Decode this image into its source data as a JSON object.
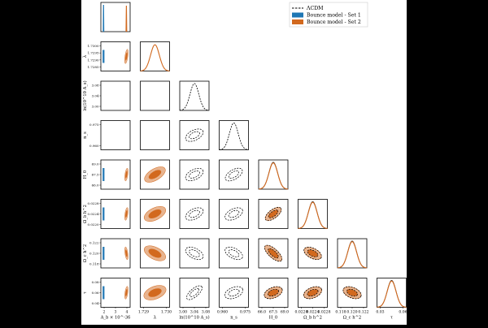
{
  "chart_data": {
    "type": "corner",
    "parameters": [
      {
        "key": "Ab",
        "label": "A_b × 10^-36",
        "ticks": [
          "2",
          "3",
          "4"
        ]
      },
      {
        "key": "lambda",
        "label": "λ",
        "ticks": [
          "1.729",
          "1.730"
        ],
        "row_ticks": [
          "1.7300",
          "1.7295",
          "1.7290",
          "1.7285"
        ]
      },
      {
        "key": "lnAs",
        "label": "ln(10^10 A_s)",
        "ticks": [
          "3.00",
          "3.04",
          "3.08"
        ],
        "row_ticks": [
          "3.08",
          "3.04",
          "3.00"
        ]
      },
      {
        "key": "ns",
        "label": "n_s",
        "ticks": [
          "0.960",
          "0.975"
        ],
        "row_ticks": [
          "0.975",
          "0.960"
        ]
      },
      {
        "key": "H0",
        "label": "H_0",
        "ticks": [
          "66.0",
          "67.5",
          "69.0"
        ],
        "row_ticks": [
          "69.0",
          "67.5",
          "66.0"
        ]
      },
      {
        "key": "ombh2",
        "label": "Ω_b h^2",
        "ticks": [
          "0.0220",
          "0.0224",
          "0.0228"
        ],
        "row_ticks": [
          "0.0228",
          "0.0224",
          "0.0220"
        ]
      },
      {
        "key": "omch2",
        "label": "Ω_c h^2",
        "ticks": [
          "0.118",
          "0.120",
          "0.122"
        ],
        "row_ticks": [
          "0.122",
          "0.120",
          "0.118"
        ]
      },
      {
        "key": "tau",
        "label": "τ",
        "ticks": [
          "0.03",
          "0.06"
        ],
        "row_ticks": [
          "0.08",
          "0.06",
          "0.04"
        ]
      }
    ],
    "legend": {
      "position": "top-right",
      "entries": [
        {
          "label": "ΛCDM",
          "style": "dashed",
          "color": "#000000"
        },
        {
          "label": "Bounce model - Set 1",
          "style": "filled",
          "color": "#1f77b4"
        },
        {
          "label": "Bounce model - Set 2",
          "style": "filled",
          "color": "#d2691e"
        }
      ]
    },
    "colors": {
      "set1": "#1f77b4",
      "set2": "#d2691e",
      "set2_light": "#e8b48f",
      "lcdm": "#000000"
    }
  }
}
